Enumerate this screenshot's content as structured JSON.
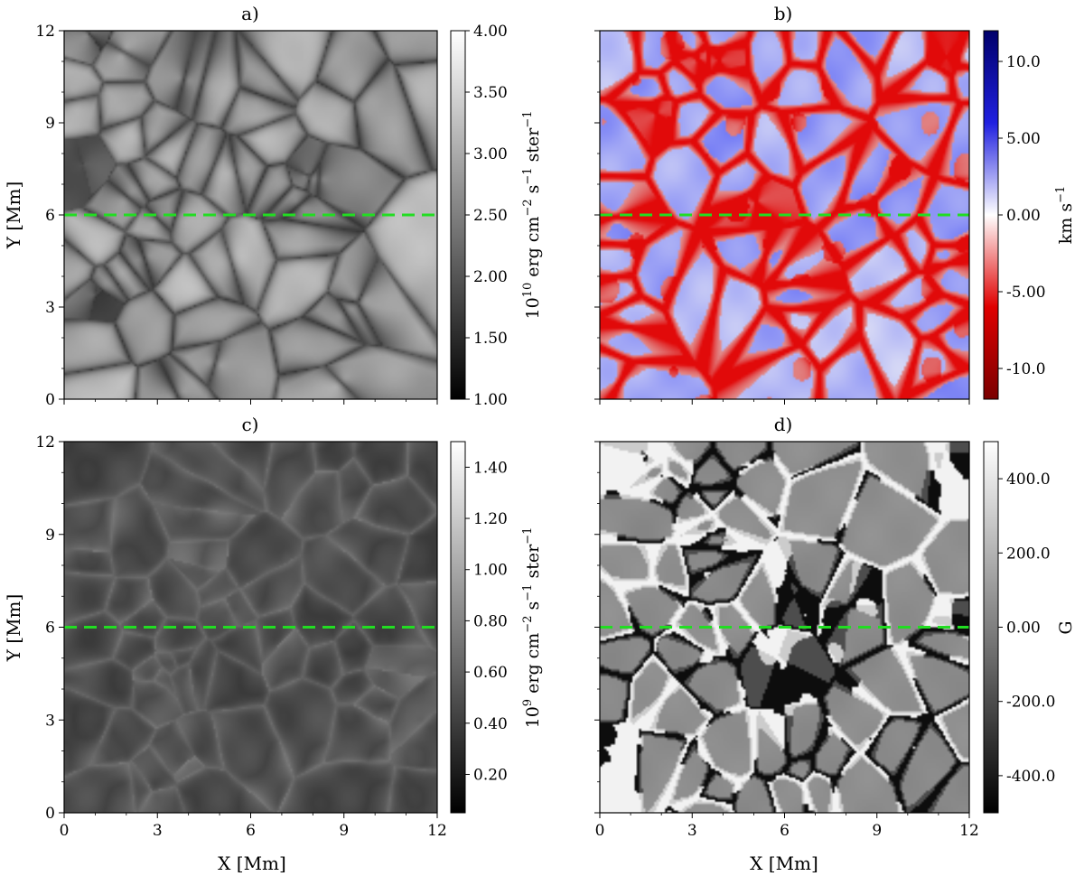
{
  "chart_data": [
    {
      "type": "heatmap",
      "panel": "a)",
      "xlabel": "",
      "ylabel": "Y [Mm]",
      "xlim": [
        0,
        12
      ],
      "ylim": [
        0,
        12
      ],
      "x_ticks": [
        0,
        3,
        6,
        9,
        12
      ],
      "y_ticks": [
        0,
        3,
        6,
        9,
        12
      ],
      "show_x_tick_labels": false,
      "show_y_tick_labels": true,
      "colormap": "gray",
      "colorbar": {
        "range": [
          1.0,
          4.0
        ],
        "ticks": [
          "1.00",
          "1.50",
          "2.00",
          "2.50",
          "3.00",
          "3.50",
          "4.00"
        ],
        "label": "10^10 erg cm^-2 s^-1 ster^-1",
        "label_base": "10",
        "label_exp": "10",
        "label_rest": " erg cm",
        "stops": [
          "#000000",
          "#ffffff"
        ]
      },
      "pattern": {
        "base": 0.48,
        "lane": 0.3,
        "contrast": 0.55,
        "seed": 11,
        "style": "granulation"
      },
      "dashed_line_y": 6,
      "line_color": "#22dd22"
    },
    {
      "type": "heatmap",
      "panel": "b)",
      "xlabel": "",
      "ylabel": "",
      "xlim": [
        0,
        12
      ],
      "ylim": [
        0,
        12
      ],
      "x_ticks": [
        0,
        3,
        6,
        9,
        12
      ],
      "y_ticks": [
        0,
        3,
        6,
        9,
        12
      ],
      "show_x_tick_labels": false,
      "show_y_tick_labels": false,
      "colormap": "seismic_r",
      "colorbar": {
        "range": [
          -12,
          12
        ],
        "ticks": [
          "-10.0",
          "-5.00",
          "0.00",
          "5.00",
          "10.0"
        ],
        "tick_values": [
          -10,
          -5,
          0,
          5,
          10
        ],
        "label": "km s^-1",
        "label_base": "km s",
        "label_exp": "−1",
        "stops": [
          "#7a0000",
          "#e00000",
          "#ffffff",
          "#2020e0",
          "#00006a"
        ]
      },
      "pattern": {
        "seed": 23,
        "style": "velocity"
      },
      "dashed_line_y": 6,
      "line_color": "#22dd22"
    },
    {
      "type": "heatmap",
      "panel": "c)",
      "xlabel": "X [Mm]",
      "ylabel": "Y [Mm]",
      "xlim": [
        0,
        12
      ],
      "ylim": [
        0,
        12
      ],
      "x_ticks": [
        0,
        3,
        6,
        9,
        12
      ],
      "y_ticks": [
        0,
        3,
        6,
        9,
        12
      ],
      "show_x_tick_labels": true,
      "show_y_tick_labels": true,
      "colormap": "gray",
      "colorbar": {
        "range": [
          0.05,
          1.5
        ],
        "ticks": [
          "0.20",
          "0.40",
          "0.60",
          "0.80",
          "1.00",
          "1.20",
          "1.40"
        ],
        "tick_values": [
          0.2,
          0.4,
          0.6,
          0.8,
          1.0,
          1.2,
          1.4
        ],
        "label": "10^9 erg cm^-2 s^-1 ster^-1",
        "label_base": "10",
        "label_exp": "9",
        "label_rest": " erg cm",
        "stops": [
          "#000000",
          "#ffffff"
        ]
      },
      "pattern": {
        "seed": 37,
        "style": "chromosphere"
      },
      "dashed_line_y": 6,
      "line_color": "#22dd22"
    },
    {
      "type": "heatmap",
      "panel": "d)",
      "xlabel": "X [Mm]",
      "ylabel": "",
      "xlim": [
        0,
        12
      ],
      "ylim": [
        0,
        12
      ],
      "x_ticks": [
        0,
        3,
        6,
        9,
        12
      ],
      "y_ticks": [
        0,
        3,
        6,
        9,
        12
      ],
      "show_x_tick_labels": true,
      "show_y_tick_labels": false,
      "colormap": "gray",
      "colorbar": {
        "range": [
          -500,
          500
        ],
        "ticks": [
          "-400.0",
          "-200.0",
          "0.00",
          "200.0",
          "400.0"
        ],
        "tick_values": [
          -400,
          -200,
          0,
          200,
          400
        ],
        "label": "G",
        "label_base": "G",
        "label_exp": "",
        "stops": [
          "#000000",
          "#ffffff"
        ]
      },
      "pattern": {
        "seed": 51,
        "style": "magnetic"
      },
      "dashed_line_y": 6,
      "line_color": "#22dd22"
    }
  ]
}
